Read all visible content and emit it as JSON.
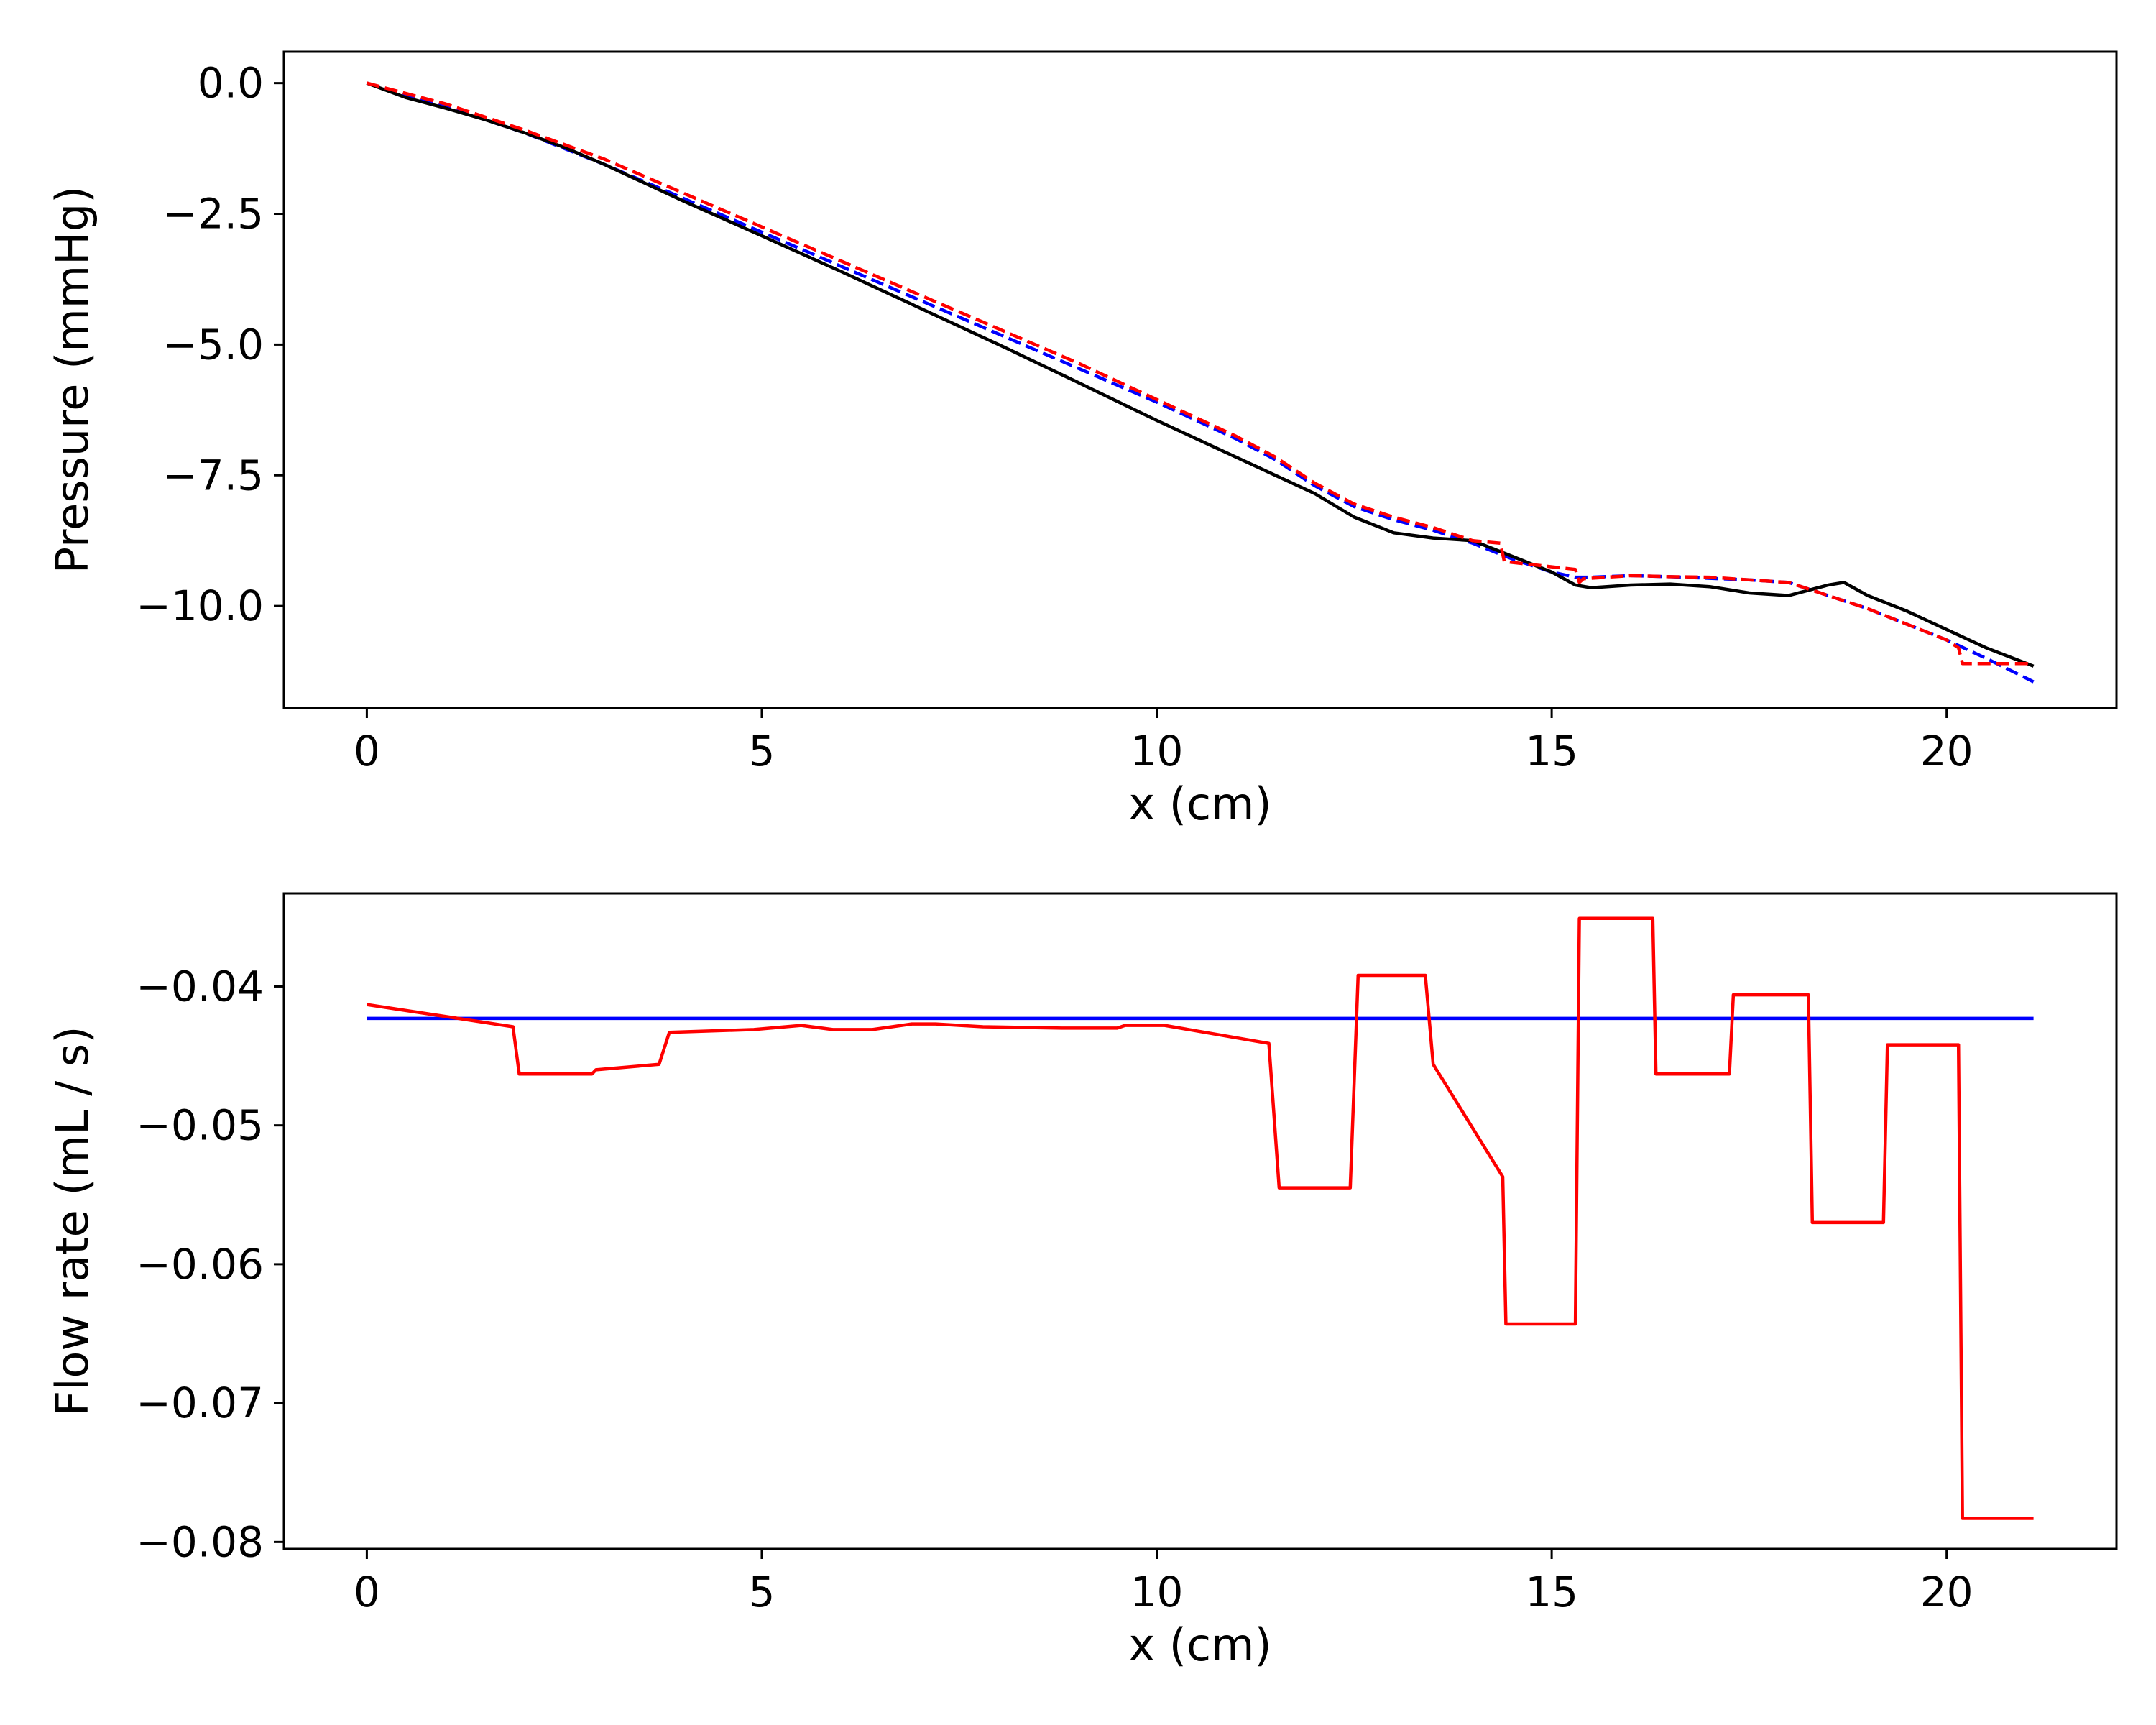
{
  "chart_data": [
    {
      "type": "line",
      "xlabel": "x (cm)",
      "ylabel": "Pressure (mmHg)",
      "xlim": [
        -1.05,
        22.15
      ],
      "ylim": [
        -11.95,
        0.6
      ],
      "xticks": [
        0,
        5,
        10,
        15,
        20
      ],
      "xtick_labels": [
        "0",
        "5",
        "10",
        "15",
        "20"
      ],
      "yticks": [
        0.0,
        -2.5,
        -5.0,
        -7.5,
        -10.0
      ],
      "ytick_labels": [
        "0.0",
        "−2.5",
        "−5.0",
        "−7.5",
        "−10.0"
      ],
      "grid": false,
      "series": [
        {
          "color": "#0000ff",
          "style": "dashed",
          "x": [
            0,
            1,
            2,
            3,
            4,
            5,
            6,
            7,
            8,
            9,
            10,
            11,
            11.5,
            12,
            12.5,
            13,
            13.5,
            14,
            14.5,
            15,
            15.3,
            15.5,
            16,
            16.5,
            17,
            17.5,
            18,
            18.5,
            19,
            19.5,
            20,
            20.5,
            21.1
          ],
          "y": [
            0,
            -0.45,
            -0.95,
            -1.55,
            -2.2,
            -2.85,
            -3.5,
            -4.15,
            -4.8,
            -5.45,
            -6.1,
            -6.8,
            -7.2,
            -7.7,
            -8.1,
            -8.35,
            -8.55,
            -8.8,
            -9.1,
            -9.35,
            -9.45,
            -9.45,
            -9.42,
            -9.44,
            -9.47,
            -9.5,
            -9.55,
            -9.8,
            -10.05,
            -10.35,
            -10.65,
            -11.0,
            -11.45
          ]
        },
        {
          "color": "#000000",
          "style": "solid",
          "x": [
            0,
            0.5,
            1,
            1.5,
            2,
            2.5,
            3,
            4,
            5,
            6,
            7,
            8,
            9,
            10,
            11,
            12,
            12.5,
            13,
            13.5,
            14,
            14.5,
            15,
            15.3,
            15.5,
            16,
            16.5,
            17,
            17.5,
            18,
            18.5,
            18.7,
            19,
            19.5,
            20,
            20.5,
            21.1
          ],
          "y": [
            0,
            -0.28,
            -0.48,
            -0.7,
            -0.95,
            -1.23,
            -1.55,
            -2.25,
            -2.92,
            -3.6,
            -4.3,
            -5.0,
            -5.72,
            -6.45,
            -7.15,
            -7.85,
            -8.3,
            -8.6,
            -8.7,
            -8.75,
            -9.05,
            -9.35,
            -9.6,
            -9.65,
            -9.6,
            -9.58,
            -9.63,
            -9.75,
            -9.8,
            -9.6,
            -9.55,
            -9.8,
            -10.1,
            -10.45,
            -10.8,
            -11.15
          ]
        },
        {
          "color": "#ff0000",
          "style": "dashed",
          "x": [
            0,
            1,
            2,
            3,
            4,
            5,
            6,
            7,
            8,
            9,
            10,
            11,
            11.5,
            12,
            12.5,
            13,
            13.5,
            14,
            14.35,
            14.4,
            15,
            15.3,
            15.35,
            15.4,
            16,
            16.5,
            17,
            17.5,
            18,
            18.5,
            19,
            19.5,
            20,
            20.15,
            20.2,
            21.1
          ],
          "y": [
            0,
            -0.4,
            -0.9,
            -1.45,
            -2.1,
            -2.75,
            -3.4,
            -4.05,
            -4.7,
            -5.35,
            -6.05,
            -6.75,
            -7.15,
            -7.65,
            -8.05,
            -8.3,
            -8.5,
            -8.75,
            -8.8,
            -9.15,
            -9.25,
            -9.3,
            -9.55,
            -9.48,
            -9.42,
            -9.44,
            -9.45,
            -9.5,
            -9.55,
            -9.8,
            -10.05,
            -10.35,
            -10.65,
            -10.8,
            -11.1,
            -11.1
          ]
        }
      ]
    },
    {
      "type": "line",
      "xlabel": "x (cm)",
      "ylabel": "Flow rate (mL / s)",
      "xlim": [
        -1.05,
        22.15
      ],
      "ylim": [
        -0.0805,
        -0.0333
      ],
      "xticks": [
        0,
        5,
        10,
        15,
        20
      ],
      "xtick_labels": [
        "0",
        "5",
        "10",
        "15",
        "20"
      ],
      "yticks": [
        -0.04,
        -0.05,
        -0.06,
        -0.07,
        -0.08
      ],
      "ytick_labels": [
        "−0.04",
        "−0.05",
        "−0.06",
        "−0.07",
        "−0.08"
      ],
      "grid": false,
      "series": [
        {
          "color": "#0000ff",
          "style": "solid",
          "x": [
            0,
            21.1
          ],
          "y": [
            -0.0423,
            -0.0423
          ]
        },
        {
          "color": "#ff0000",
          "style": "solid",
          "x": [
            0,
            1.85,
            1.93,
            2.85,
            2.9,
            3.7,
            3.83,
            4.9,
            5.5,
            5.9,
            6.4,
            6.9,
            7.2,
            7.8,
            8.8,
            9.5,
            9.6,
            10.1,
            11.42,
            11.55,
            12.45,
            12.55,
            13.4,
            13.5,
            14.38,
            14.42,
            15.3,
            15.35,
            16.28,
            16.32,
            17.25,
            17.3,
            18.25,
            18.3,
            19.2,
            19.25,
            20.15,
            20.2,
            21.1
          ],
          "y": [
            -0.0413,
            -0.0429,
            -0.0463,
            -0.0463,
            -0.046,
            -0.0456,
            -0.0433,
            -0.0431,
            -0.0428,
            -0.0431,
            -0.0431,
            -0.0427,
            -0.0427,
            -0.0429,
            -0.043,
            -0.043,
            -0.0428,
            -0.0428,
            -0.0441,
            -0.0545,
            -0.0545,
            -0.0392,
            -0.0392,
            -0.0456,
            -0.0537,
            -0.0643,
            -0.0643,
            -0.0351,
            -0.0351,
            -0.0463,
            -0.0463,
            -0.0406,
            -0.0406,
            -0.057,
            -0.057,
            -0.0442,
            -0.0442,
            -0.0783,
            -0.0783
          ]
        }
      ]
    }
  ]
}
